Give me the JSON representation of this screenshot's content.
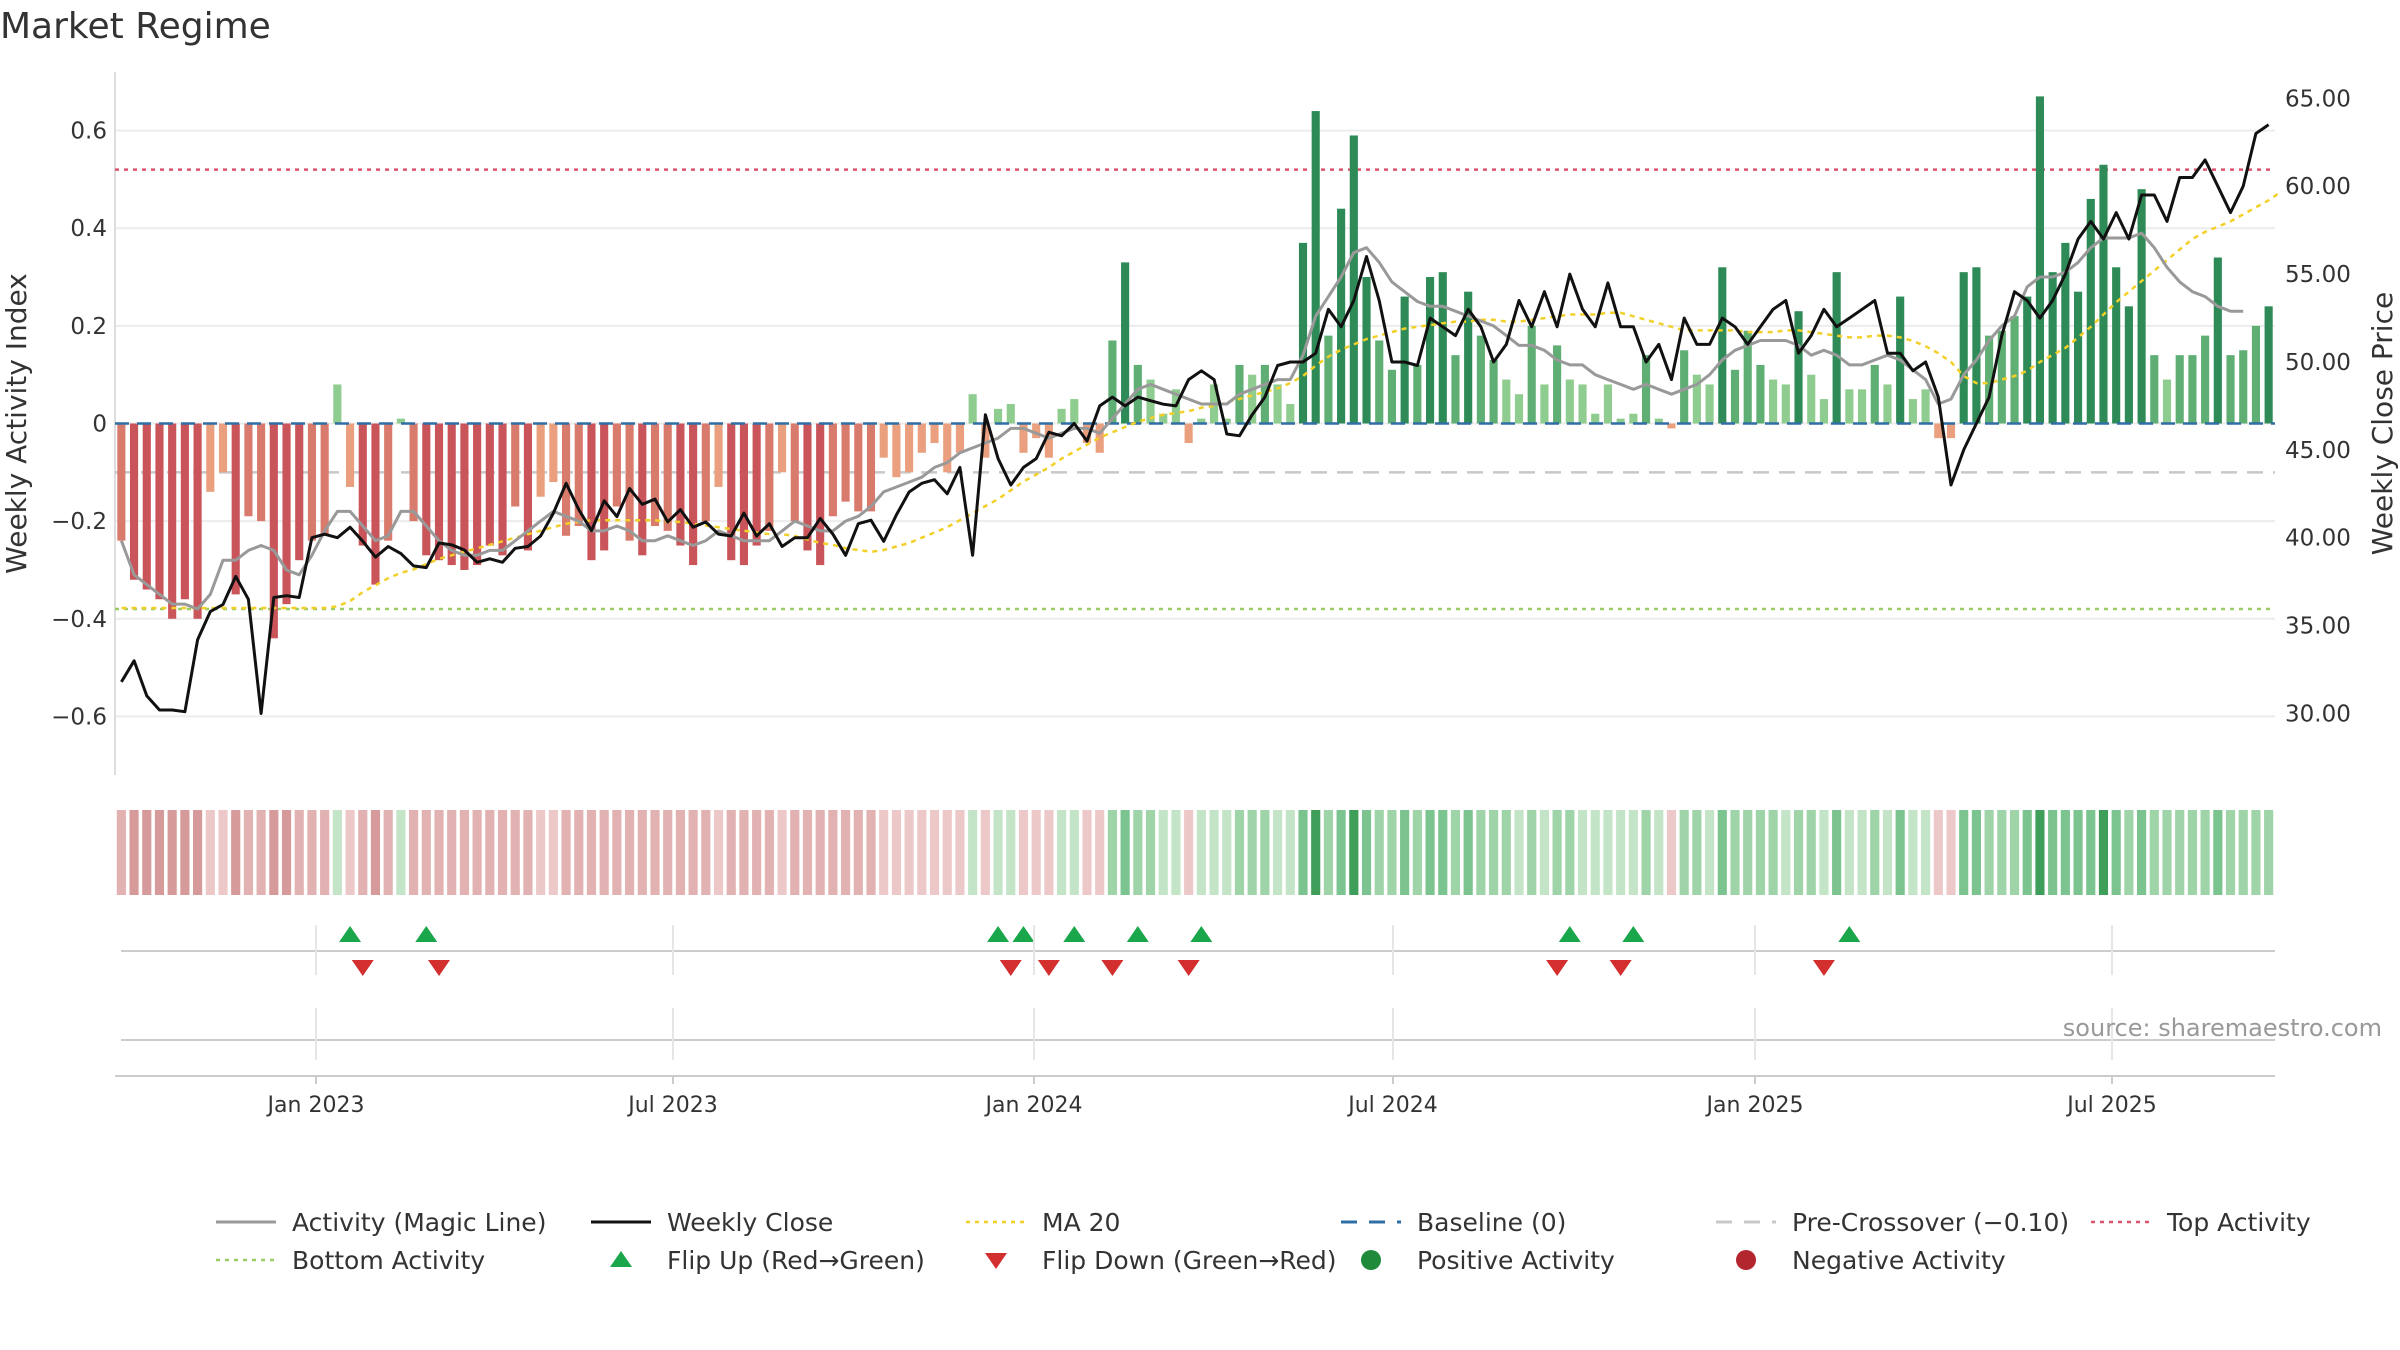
{
  "title": "Market Regime",
  "source": "source: sharemaestro.com",
  "chart_data": {
    "type": "bar",
    "left_axis": {
      "label": "Weekly Activity Index",
      "ylim": [
        -0.72,
        0.72
      ],
      "ticks": [
        "−0.6",
        "−0.4",
        "−0.2",
        "0",
        "0.2",
        "0.4",
        "0.6"
      ]
    },
    "right_axis": {
      "label": "Weekly Close Price",
      "ylim": [
        26.5,
        66.5
      ],
      "ticks": [
        "30.00",
        "35.00",
        "40.00",
        "45.00",
        "50.00",
        "55.00",
        "60.00",
        "65.00"
      ]
    },
    "x_ticks": [
      "Jan 2023",
      "Jul 2023",
      "Jan 2024",
      "Jul 2024",
      "Jan 2025",
      "Jul 2025"
    ],
    "grid": true,
    "reference_lines": {
      "top_activity": 0.52,
      "bottom_activity": -0.38,
      "pre_crossover": -0.1,
      "baseline": 0
    },
    "weekly_activity": [
      -0.24,
      -0.32,
      -0.34,
      -0.36,
      -0.4,
      -0.36,
      -0.4,
      -0.14,
      -0.1,
      -0.35,
      -0.19,
      -0.2,
      -0.44,
      -0.37,
      -0.28,
      -0.24,
      -0.23,
      0.08,
      -0.13,
      -0.25,
      -0.33,
      -0.24,
      0.01,
      -0.2,
      -0.27,
      -0.28,
      -0.29,
      -0.3,
      -0.29,
      -0.25,
      -0.27,
      -0.17,
      -0.26,
      -0.15,
      -0.12,
      -0.23,
      -0.21,
      -0.28,
      -0.26,
      -0.17,
      -0.24,
      -0.27,
      -0.21,
      -0.22,
      -0.25,
      -0.29,
      -0.2,
      -0.13,
      -0.28,
      -0.29,
      -0.25,
      -0.22,
      -0.1,
      -0.2,
      -0.26,
      -0.29,
      -0.19,
      -0.16,
      -0.18,
      -0.18,
      -0.07,
      -0.11,
      -0.1,
      -0.06,
      -0.04,
      -0.1,
      -0.06,
      0.06,
      -0.07,
      0.03,
      0.04,
      -0.06,
      -0.03,
      -0.07,
      0.03,
      0.05,
      -0.04,
      -0.06,
      0.17,
      0.33,
      0.12,
      0.09,
      0.02,
      0.07,
      -0.04,
      0.01,
      0.08,
      0.01,
      0.12,
      0.1,
      0.12,
      0.08,
      0.04,
      0.37,
      0.64,
      0.18,
      0.44,
      0.59,
      0.3,
      0.17,
      0.11,
      0.26,
      0.12,
      0.3,
      0.31,
      0.14,
      0.27,
      0.18,
      0.13,
      0.09,
      0.06,
      0.2,
      0.08,
      0.16,
      0.09,
      0.08,
      0.02,
      0.08,
      0.01,
      0.02,
      0.14,
      0.01,
      -0.01,
      0.15,
      0.1,
      0.08,
      0.32,
      0.11,
      0.19,
      0.12,
      0.09,
      0.08,
      0.23,
      0.1,
      0.05,
      0.31,
      0.07,
      0.07,
      0.12,
      0.08,
      0.26,
      0.05,
      0.07,
      -0.03,
      -0.03,
      0.31,
      0.32,
      0.18,
      0.19,
      0.22,
      0.26,
      0.67,
      0.31,
      0.37,
      0.27,
      0.46,
      0.53,
      0.32,
      0.24,
      0.48,
      0.14,
      0.09,
      0.14,
      0.14,
      0.18,
      0.34,
      0.14,
      0.15,
      0.2,
      0.24
    ],
    "activity_magic_line": [
      -0.24,
      -0.31,
      -0.33,
      -0.35,
      -0.37,
      -0.37,
      -0.38,
      -0.35,
      -0.28,
      -0.28,
      -0.26,
      -0.25,
      -0.26,
      -0.3,
      -0.31,
      -0.27,
      -0.22,
      -0.18,
      -0.18,
      -0.21,
      -0.24,
      -0.23,
      -0.18,
      -0.18,
      -0.21,
      -0.24,
      -0.26,
      -0.27,
      -0.27,
      -0.26,
      -0.26,
      -0.24,
      -0.22,
      -0.2,
      -0.18,
      -0.19,
      -0.2,
      -0.22,
      -0.22,
      -0.21,
      -0.22,
      -0.24,
      -0.24,
      -0.23,
      -0.24,
      -0.25,
      -0.24,
      -0.22,
      -0.23,
      -0.24,
      -0.24,
      -0.24,
      -0.22,
      -0.2,
      -0.21,
      -0.22,
      -0.22,
      -0.2,
      -0.19,
      -0.17,
      -0.14,
      -0.13,
      -0.12,
      -0.11,
      -0.09,
      -0.08,
      -0.06,
      -0.05,
      -0.04,
      -0.03,
      -0.01,
      -0.01,
      -0.02,
      -0.03,
      -0.02,
      -0.01,
      -0.01,
      -0.02,
      0.01,
      0.04,
      0.07,
      0.08,
      0.07,
      0.06,
      0.05,
      0.04,
      0.04,
      0.04,
      0.06,
      0.07,
      0.08,
      0.09,
      0.09,
      0.14,
      0.22,
      0.26,
      0.3,
      0.35,
      0.36,
      0.33,
      0.29,
      0.27,
      0.25,
      0.24,
      0.24,
      0.23,
      0.22,
      0.21,
      0.2,
      0.18,
      0.16,
      0.16,
      0.15,
      0.13,
      0.12,
      0.12,
      0.1,
      0.09,
      0.08,
      0.07,
      0.08,
      0.07,
      0.06,
      0.07,
      0.08,
      0.1,
      0.13,
      0.15,
      0.16,
      0.17,
      0.17,
      0.17,
      0.16,
      0.14,
      0.15,
      0.14,
      0.12,
      0.12,
      0.13,
      0.14,
      0.13,
      0.11,
      0.09,
      0.04,
      0.05,
      0.1,
      0.13,
      0.17,
      0.2,
      0.22,
      0.28,
      0.3,
      0.3,
      0.31,
      0.33,
      0.36,
      0.38,
      0.38,
      0.38,
      0.39,
      0.36,
      0.32,
      0.29,
      0.27,
      0.26,
      0.24,
      0.23,
      0.23
    ],
    "weekly_close": [
      31.8,
      33.0,
      31.0,
      30.2,
      30.2,
      30.1,
      34.2,
      35.8,
      36.2,
      37.8,
      36.5,
      30.0,
      36.6,
      36.7,
      36.6,
      40.0,
      40.2,
      40.0,
      40.6,
      39.8,
      38.9,
      39.5,
      39.1,
      38.4,
      38.3,
      39.7,
      39.6,
      39.3,
      38.6,
      38.8,
      38.6,
      39.4,
      39.5,
      40.1,
      41.4,
      43.1,
      41.6,
      40.4,
      42.1,
      41.2,
      42.8,
      41.9,
      42.2,
      40.9,
      41.6,
      40.6,
      40.9,
      40.2,
      40.1,
      41.4,
      40.1,
      40.8,
      39.5,
      40.0,
      40.0,
      41.1,
      40.2,
      39.0,
      40.8,
      41.0,
      39.8,
      41.3,
      42.6,
      43.1,
      43.3,
      42.5,
      44.0,
      39.0,
      47.0,
      44.5,
      43.0,
      44.0,
      44.5,
      46.0,
      45.8,
      46.5,
      45.5,
      47.5,
      48.0,
      47.5,
      48.0,
      47.8,
      47.6,
      47.5,
      49.0,
      49.5,
      49.0,
      45.9,
      45.8,
      47.0,
      48.0,
      49.8,
      50.0,
      50.0,
      50.5,
      53.0,
      52.0,
      53.5,
      56.0,
      53.5,
      50.0,
      50.0,
      49.8,
      52.5,
      52.0,
      51.5,
      53.0,
      52.0,
      50.0,
      51.0,
      53.5,
      52.0,
      54.0,
      52.0,
      55.0,
      53.0,
      52.0,
      54.5,
      52.0,
      52.0,
      50.0,
      51.0,
      49.0,
      52.5,
      51.0,
      51.0,
      52.5,
      52.0,
      51.0,
      52.0,
      53.0,
      53.5,
      50.5,
      51.5,
      53.0,
      52.0,
      52.5,
      53.0,
      53.5,
      50.5,
      50.5,
      49.5,
      50.0,
      48.0,
      43.0,
      45.0,
      46.5,
      48.0,
      51.5,
      54.0,
      53.5,
      52.5,
      53.5,
      55.0,
      57.0,
      58.0,
      57.0,
      58.5,
      57.0,
      59.5,
      59.5,
      58.0,
      60.5,
      60.5,
      61.5,
      60.0,
      58.5,
      60.0,
      63.0,
      63.5
    ],
    "ma_20": [
      36,
      36,
      36,
      36,
      36,
      36,
      36,
      36,
      36,
      36,
      36,
      36,
      36,
      36,
      36,
      36,
      36,
      36.1,
      36.4,
      36.9,
      37.3,
      37.7,
      38.0,
      38.2,
      38.5,
      38.8,
      39.0,
      39.2,
      39.4,
      39.6,
      39.8,
      40.0,
      40.2,
      40.4,
      40.6,
      40.8,
      40.9,
      41.0,
      41.0,
      41.0,
      41.0,
      41.0,
      41.0,
      40.9,
      40.9,
      40.8,
      40.7,
      40.6,
      40.5,
      40.4,
      40.3,
      40.2,
      40.2,
      40.1,
      39.9,
      39.7,
      39.6,
      39.4,
      39.3,
      39.2,
      39.3,
      39.5,
      39.7,
      40.0,
      40.3,
      40.6,
      41.0,
      41.4,
      41.8,
      42.2,
      42.7,
      43.2,
      43.6,
      44.0,
      44.5,
      44.9,
      45.3,
      45.7,
      46.0,
      46.3,
      46.6,
      46.8,
      47.0,
      47.1,
      47.2,
      47.4,
      47.5,
      47.7,
      47.9,
      48.1,
      48.3,
      48.5,
      48.8,
      49.2,
      49.8,
      50.3,
      50.7,
      51.0,
      51.3,
      51.5,
      51.7,
      51.9,
      52.0,
      52.1,
      52.2,
      52.3,
      52.3,
      52.4,
      52.4,
      52.3,
      52.3,
      52.4,
      52.5,
      52.6,
      52.7,
      52.7,
      52.7,
      52.8,
      52.8,
      52.6,
      52.4,
      52.2,
      52.0,
      51.8,
      51.8,
      51.8,
      51.8,
      51.8,
      51.7,
      51.7,
      51.7,
      51.8,
      51.8,
      51.7,
      51.6,
      51.5,
      51.4,
      51.4,
      51.5,
      51.5,
      51.4,
      51.2,
      50.9,
      50.5,
      50.0,
      49.2,
      48.8,
      48.8,
      49.0,
      49.2,
      49.5,
      50.0,
      50.4,
      50.8,
      51.4,
      52.0,
      52.7,
      53.4,
      54.0,
      54.6,
      55.2,
      55.8,
      56.4,
      57.0,
      57.4,
      57.7,
      58.0,
      58.4,
      58.8,
      59.2,
      59.7
    ],
    "flip_up_weeks": [
      18,
      24,
      69,
      71,
      75,
      80,
      85,
      114,
      119,
      136
    ],
    "flip_down_weeks": [
      19,
      25,
      70,
      73,
      78,
      84,
      113,
      118,
      134
    ],
    "legend": [
      {
        "label": "Activity (Magic Line)",
        "symbol": "line",
        "color": "#999999"
      },
      {
        "label": "Weekly Close",
        "symbol": "line",
        "color": "#111111"
      },
      {
        "label": "MA 20",
        "symbol": "dotted",
        "color": "#f2d027"
      },
      {
        "label": "Baseline (0)",
        "symbol": "dashed",
        "color": "#2f6fa5"
      },
      {
        "label": "Pre-Crossover (−0.10)",
        "symbol": "dashed",
        "color": "#c8c8c8"
      },
      {
        "label": "Top Activity",
        "symbol": "dotted",
        "color": "#d9546c"
      },
      {
        "label": "Bottom Activity",
        "symbol": "dotted",
        "color": "#9ccc65"
      },
      {
        "label": "Flip Up (Red→Green)",
        "symbol": "triangle-up",
        "color": "#1aa64a"
      },
      {
        "label": "Flip Down (Green→Red)",
        "symbol": "triangle-down",
        "color": "#d32f2f"
      },
      {
        "label": "Positive Activity",
        "symbol": "circle",
        "color": "#1f8a3a"
      },
      {
        "label": "Negative Activity",
        "symbol": "circle",
        "color": "#b3262e"
      }
    ]
  }
}
